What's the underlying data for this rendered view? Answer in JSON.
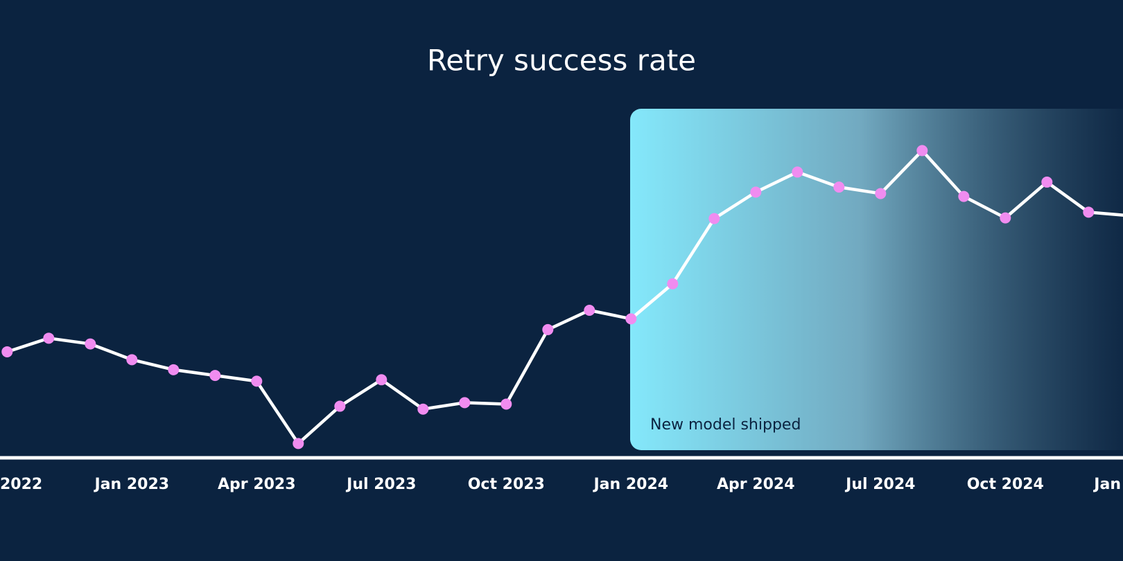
{
  "chart_data": {
    "type": "line",
    "title": "Retry success rate",
    "annotation": "New model shipped",
    "categories": [
      "2022",
      null,
      null,
      "Jan 2023",
      null,
      null,
      "Apr 2023",
      null,
      null,
      "Jul 2023",
      null,
      null,
      "Oct 2023",
      null,
      null,
      "Jan 2024",
      null,
      null,
      "Apr 2024",
      null,
      null,
      "Jul 2024",
      null,
      null,
      "Oct 2024",
      null,
      null,
      "Jan"
    ],
    "series": [
      {
        "name": "Retry success rate",
        "color": "#f08cf0",
        "values": [
          29.6,
          33.4,
          31.8,
          27.4,
          24.6,
          23,
          21.4,
          4,
          14.4,
          21.8,
          13.6,
          15.4,
          15,
          35.8,
          41.2,
          38.8,
          48.6,
          66.8,
          74.2,
          79.8,
          75.6,
          73.8,
          85.8,
          73,
          67,
          77,
          68.6,
          67.6
        ]
      }
    ],
    "ylim": [
      0,
      100
    ]
  }
}
